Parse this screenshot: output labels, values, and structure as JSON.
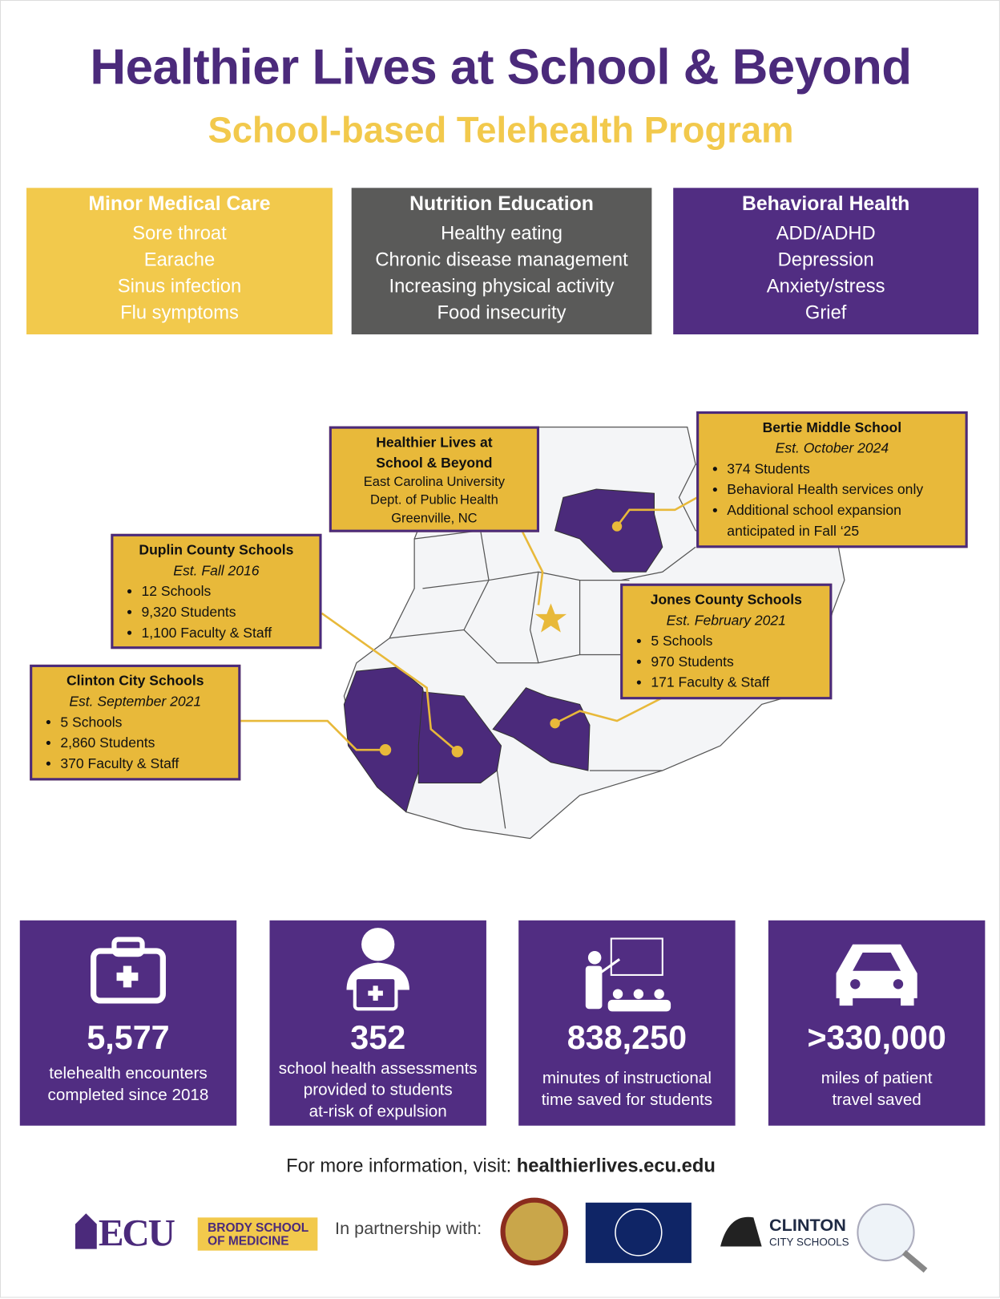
{
  "header": {
    "title": "Healthier Lives at School & Beyond",
    "subtitle": "School-based Telehealth Program"
  },
  "services": [
    {
      "title": "Minor Medical Care",
      "items": [
        "Sore throat",
        "Earache",
        "Sinus infection",
        "Flu symptoms"
      ]
    },
    {
      "title": "Nutrition Education",
      "items": [
        "Healthy eating",
        "Chronic disease management",
        "Increasing physical activity",
        "Food insecurity"
      ]
    },
    {
      "title": "Behavioral Health",
      "items": [
        "ADD/ADHD",
        "Depression",
        "Anxiety/stress",
        "Grief"
      ]
    }
  ],
  "map": {
    "hub": {
      "title": [
        "Healthier Lives at",
        "School & Beyond"
      ],
      "lines": [
        "East Carolina University",
        "Dept. of Public Health",
        "Greenville, NC"
      ]
    },
    "sites": [
      {
        "title": "Bertie Middle School",
        "est": "Est. October 2024",
        "items": [
          "374 Students",
          "Behavioral Health services only",
          "Additional school expansion anticipated in Fall ‘25"
        ]
      },
      {
        "title": "Duplin County Schools",
        "est": "Est. Fall 2016",
        "items": [
          "12 Schools",
          "9,320 Students",
          "1,100 Faculty & Staff"
        ]
      },
      {
        "title": "Jones County Schools",
        "est": "Est. February 2021",
        "items": [
          "5 Schools",
          "970 Students",
          "171 Faculty & Staff"
        ]
      },
      {
        "title": "Clinton City Schools",
        "est": "Est. September 2021",
        "items": [
          "5 Schools",
          "2,860 Students",
          "370 Faculty & Staff"
        ]
      }
    ]
  },
  "stats": [
    {
      "value": "5,577",
      "label": [
        "telehealth encounters",
        "completed since 2018"
      ]
    },
    {
      "value": "352",
      "label": [
        "school health assessments",
        "provided to students",
        "at-risk of expulsion"
      ]
    },
    {
      "value": "838,250",
      "label": [
        "minutes of instructional",
        "time saved for students"
      ]
    },
    {
      "value": ">330,000",
      "label": [
        "miles of patient",
        "travel saved"
      ]
    }
  ],
  "footer": {
    "info": "For more information, visit:",
    "url": "healthierlives.ecu.edu",
    "ecu": "ECU",
    "brody": [
      "BRODY SCHOOL",
      "OF MEDICINE"
    ],
    "partnership": "In partnership with:",
    "clinton": [
      "CLINTON",
      "CITY SCHOOLS"
    ]
  }
}
